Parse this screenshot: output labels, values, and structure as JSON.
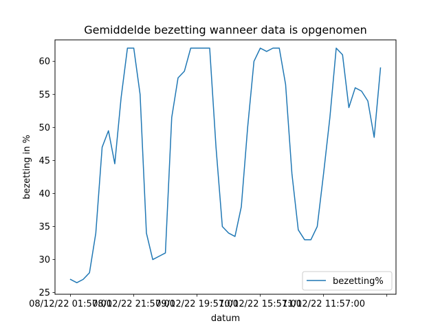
{
  "chart_data": {
    "type": "line",
    "title": "Gemiddelde bezetting wanneer data is opgenomen",
    "xlabel": "datum",
    "ylabel": "bezetting in %",
    "x_tick_labels": [
      "08/12/22 01:57:00",
      "08/12/22 21:57:00",
      "09/12/22 19:57:00",
      "10/12/22 15:57:00",
      "11/12/22 11:57:00",
      ""
    ],
    "y_ticks": [
      25,
      30,
      35,
      40,
      45,
      50,
      55,
      60
    ],
    "ylim": [
      24.75,
      63.25
    ],
    "xlim": [
      -2.45,
      51.45
    ],
    "grid": false,
    "legend_position": "lower right",
    "series": [
      {
        "name": "bezetting%",
        "color": "#1f77b4",
        "values": [
          27,
          26.5,
          27,
          28,
          34,
          47,
          49.5,
          44.5,
          54.5,
          62,
          62,
          55,
          34,
          30,
          30.5,
          31,
          51.5,
          57.5,
          58.5,
          62,
          62,
          62,
          62,
          47,
          35,
          34,
          33.5,
          38,
          50,
          60,
          62,
          61.5,
          62,
          62,
          56.5,
          43,
          34.5,
          33,
          33,
          35,
          43,
          51.5,
          62,
          61,
          53,
          56,
          55.5,
          54,
          48.5,
          59
        ]
      }
    ]
  }
}
